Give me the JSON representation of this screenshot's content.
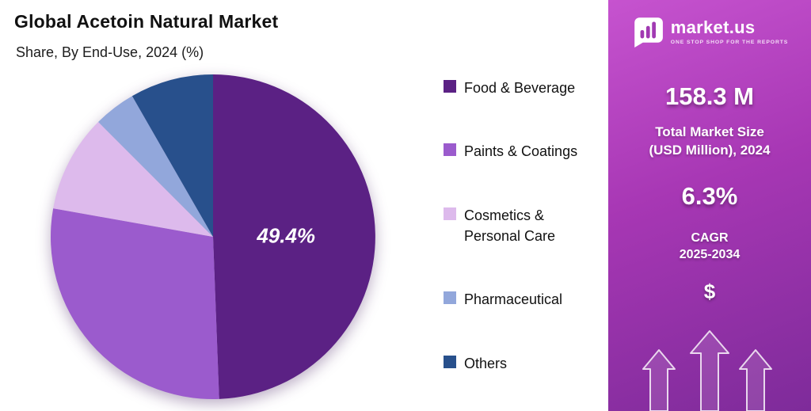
{
  "header": {
    "title": "Global Acetoin Natural Market",
    "subtitle": "Share, By End-Use, 2024 (%)"
  },
  "chart_data": {
    "type": "pie",
    "title": "Global Acetoin Natural Market",
    "subtitle": "Share, By End-Use, 2024 (%)",
    "unit": "%",
    "start_angle_deg": 0,
    "direction": "clockwise",
    "legend_position": "right",
    "slices": [
      {
        "label": "Food & Beverage",
        "legend_label": "Food & Beverage",
        "value": 49.4,
        "color": "#5b2184",
        "data_label": "49.4%"
      },
      {
        "label": "Paints & Coatings",
        "legend_label": "Paints & Coatings",
        "value": 28.4,
        "color": "#9b5bcd"
      },
      {
        "label": "Cosmetics & Personal Care",
        "legend_label": "Cosmetics &\nPersonal Care",
        "value": 9.7,
        "color": "#ddbaec"
      },
      {
        "label": "Pharmaceutical",
        "legend_label": "Pharmaceutical",
        "value": 4.2,
        "color": "#92a7db"
      },
      {
        "label": "Others",
        "legend_label": "Others",
        "value": 8.3,
        "color": "#28508c"
      }
    ]
  },
  "sidebar": {
    "brand_name": "market.us",
    "brand_tagline": "ONE STOP SHOP FOR THE REPORTS",
    "market_size_value": "158.3 M",
    "market_size_label_line1": "Total Market Size",
    "market_size_label_line2": "(USD Million), 2024",
    "cagr_value": "6.3%",
    "cagr_label_line1": "CAGR",
    "cagr_label_line2": "2025-2034",
    "dollar_symbol": "$"
  }
}
